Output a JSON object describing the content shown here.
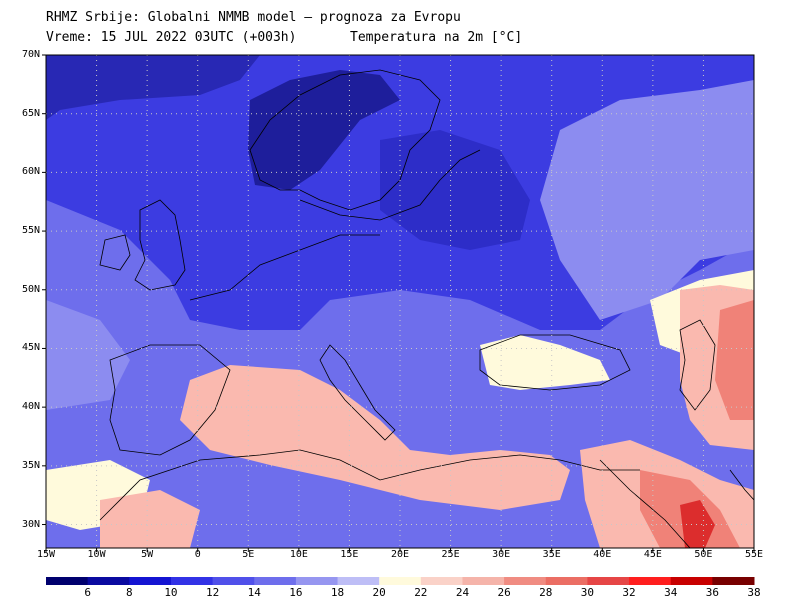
{
  "header": {
    "title": "RHMZ Srbije: Globalni NMMB model — prognoza za Evropu",
    "valid_time": "Vreme: 15 JUL 2022 03UTC (+003h)",
    "field": "Temperatura na 2m [°C]"
  },
  "axes": {
    "lat_labels": [
      "70N",
      "65N",
      "60N",
      "55N",
      "50N",
      "45N",
      "40N",
      "35N",
      "30N"
    ],
    "lat_values": [
      70,
      65,
      60,
      55,
      50,
      45,
      40,
      35,
      30
    ],
    "lon_labels": [
      "15W",
      "10W",
      "5W",
      "0",
      "5E",
      "10E",
      "15E",
      "20E",
      "25E",
      "30E",
      "35E",
      "40E",
      "45E",
      "50E",
      "55E"
    ],
    "lon_values": [
      -15,
      -10,
      -5,
      0,
      5,
      10,
      15,
      20,
      25,
      30,
      35,
      40,
      45,
      50,
      55
    ],
    "lat_range": [
      28,
      70
    ],
    "lon_range": [
      -15,
      55
    ],
    "grid": "dotted"
  },
  "colorbar": {
    "labels": [
      "6",
      "8",
      "10",
      "12",
      "14",
      "16",
      "18",
      "20",
      "22",
      "24",
      "26",
      "28",
      "30",
      "32",
      "34",
      "36",
      "38"
    ],
    "colors": [
      "#00006e",
      "#0a0aa0",
      "#1414d2",
      "#3232e6",
      "#5050ea",
      "#6e6eec",
      "#9696f0",
      "#bebef6",
      "#fffadc",
      "#fad2c8",
      "#f5b4aa",
      "#f08c82",
      "#eb6e64",
      "#e64646",
      "#ff1e1e",
      "#c80000",
      "#780000"
    ]
  },
  "colors": {
    "cold_deep": "#1e1e9b",
    "cool": "#3c3ce1",
    "mild": "#8c8cf0",
    "neutral": "#fffadc",
    "warm": "#fab9af",
    "hot": "#f08278",
    "very_hot": "#dc2d2d",
    "coastline": "#000000"
  }
}
